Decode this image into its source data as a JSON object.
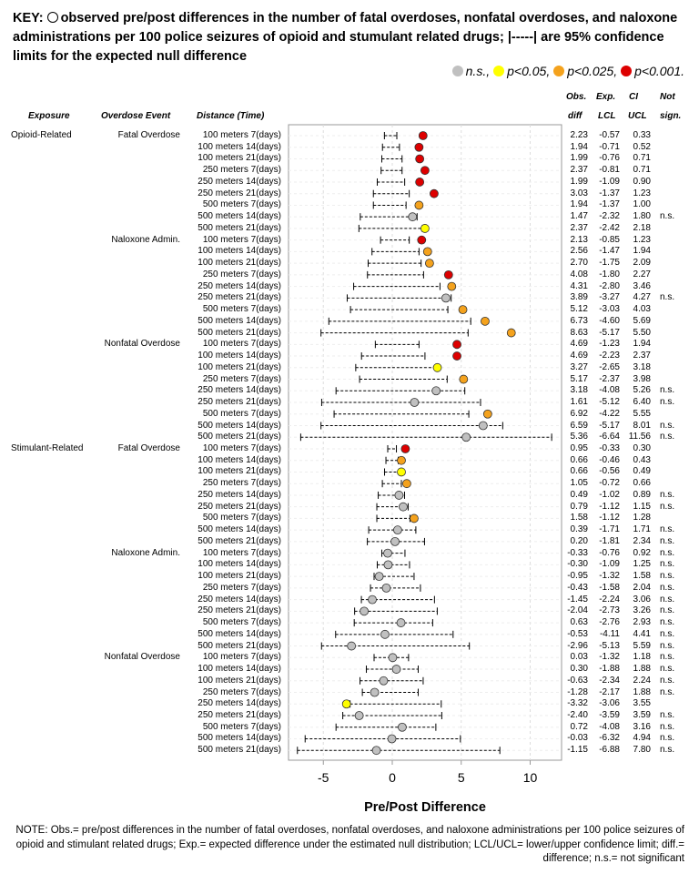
{
  "key_text": "KEY: observed pre/post differences in the number of fatal overdoses, nonfatal overdoses, and naloxone administrations per 100 police seizures of opioid and stumulant related drugs; |-----| are 95% confidence limits for the expected null difference",
  "key_prefix": "KEY:",
  "key_body": "observed pre/post differences in the number of fatal overdoses, nonfatal overdoses, and naloxone administrations per 100 police seizures of opioid and stumulant related drugs; |-----| are 95% confidence limits for the expected null difference",
  "legend": [
    {
      "label": "n.s.,",
      "color": "#c0c0c0"
    },
    {
      "label": "p<0.05,",
      "color": "#ffff00"
    },
    {
      "label": "p<0.025,",
      "color": "#f4a21d"
    },
    {
      "label": "p<0.001.",
      "color": "#dd0000"
    }
  ],
  "headers": {
    "exposure": "Exposure",
    "event": "Overdose Event",
    "distance": "Distance (Time)",
    "obs1": "Obs.",
    "obs2": "diff",
    "exp1": "Exp.",
    "exp2": "LCL",
    "ci1": "CI",
    "ci2": "UCL",
    "not1": "Not",
    "not2": "sign."
  },
  "chart_data": {
    "type": "forest",
    "xlabel": "Pre/Post Difference",
    "xlim": [
      -7.7,
      12.2
    ],
    "xticks": [
      -5,
      0,
      5,
      10
    ],
    "grid": true,
    "distances": [
      "100 meters 7(days)",
      "100 meters 14(days)",
      "100 meters 21(days)",
      "250 meters 7(days)",
      "250 meters 14(days)",
      "250 meters 21(days)",
      "500 meters 7(days)",
      "500 meters 14(days)",
      "500 meters 21(days)"
    ],
    "groups": [
      {
        "exposure": "Opioid-Related",
        "event": "Fatal Overdose",
        "obs": [
          2.23,
          1.94,
          1.99,
          2.37,
          1.99,
          3.03,
          1.94,
          1.47,
          2.37
        ],
        "lcl": [
          -0.57,
          -0.71,
          -0.76,
          -0.81,
          -1.09,
          -1.37,
          -1.37,
          -2.32,
          -2.42
        ],
        "ucl": [
          0.33,
          0.52,
          0.71,
          0.71,
          0.9,
          1.23,
          1.0,
          1.8,
          2.18
        ],
        "sig": [
          "p<0.001",
          "p<0.001",
          "p<0.001",
          "p<0.001",
          "p<0.001",
          "p<0.001",
          "p<0.025",
          "n.s.",
          "p<0.05"
        ]
      },
      {
        "exposure": "",
        "event": "Naloxone Admin.",
        "obs": [
          2.13,
          2.56,
          2.7,
          4.08,
          4.31,
          3.89,
          5.12,
          6.73,
          8.63
        ],
        "lcl": [
          -0.85,
          -1.47,
          -1.75,
          -1.8,
          -2.8,
          -3.27,
          -3.03,
          -4.6,
          -5.17
        ],
        "ucl": [
          1.23,
          1.94,
          2.09,
          2.27,
          3.46,
          4.27,
          4.03,
          5.69,
          5.5
        ],
        "sig": [
          "p<0.001",
          "p<0.025",
          "p<0.025",
          "p<0.001",
          "p<0.025",
          "n.s.",
          "p<0.025",
          "p<0.025",
          "p<0.025"
        ]
      },
      {
        "exposure": "",
        "event": "Nonfatal Overdose",
        "obs": [
          4.69,
          4.69,
          3.27,
          5.17,
          3.18,
          1.61,
          6.92,
          6.59,
          5.36
        ],
        "lcl": [
          -1.23,
          -2.23,
          -2.65,
          -2.37,
          -4.08,
          -5.12,
          -4.22,
          -5.17,
          -6.64
        ],
        "ucl": [
          1.94,
          2.37,
          3.18,
          3.98,
          5.26,
          6.4,
          5.55,
          8.01,
          11.56
        ],
        "sig": [
          "p<0.001",
          "p<0.001",
          "p<0.05",
          "p<0.025",
          "n.s.",
          "n.s.",
          "p<0.025",
          "n.s.",
          "n.s."
        ]
      },
      {
        "exposure": "Stimulant-Related",
        "event": "Fatal Overdose",
        "obs": [
          0.95,
          0.66,
          0.66,
          1.05,
          0.49,
          0.79,
          1.58,
          0.39,
          0.2
        ],
        "lcl": [
          -0.33,
          -0.46,
          -0.56,
          -0.72,
          -1.02,
          -1.12,
          -1.12,
          -1.71,
          -1.81
        ],
        "ucl": [
          0.3,
          0.43,
          0.49,
          0.66,
          0.89,
          1.15,
          1.28,
          1.71,
          2.34
        ],
        "sig": [
          "p<0.001",
          "p<0.025",
          "p<0.05",
          "p<0.025",
          "n.s.",
          "n.s.",
          "p<0.025",
          "n.s.",
          "n.s."
        ]
      },
      {
        "exposure": "",
        "event": "Naloxone Admin.",
        "obs": [
          -0.33,
          -0.3,
          -0.95,
          -0.43,
          -1.45,
          -2.04,
          0.63,
          -0.53,
          -2.96
        ],
        "lcl": [
          -0.76,
          -1.09,
          -1.32,
          -1.58,
          -2.24,
          -2.73,
          -2.76,
          -4.11,
          -5.13
        ],
        "ucl": [
          0.92,
          1.25,
          1.58,
          2.04,
          3.06,
          3.26,
          2.93,
          4.41,
          5.59
        ],
        "sig": [
          "n.s.",
          "n.s.",
          "n.s.",
          "n.s.",
          "n.s.",
          "n.s.",
          "n.s.",
          "n.s.",
          "n.s."
        ]
      },
      {
        "exposure": "",
        "event": "Nonfatal Overdose",
        "obs": [
          0.03,
          0.3,
          -0.63,
          -1.28,
          -3.32,
          -2.4,
          0.72,
          -0.03,
          -1.15
        ],
        "lcl": [
          -1.32,
          -1.88,
          -2.34,
          -2.17,
          -3.06,
          -3.59,
          -4.08,
          -6.32,
          -6.88
        ],
        "ucl": [
          1.18,
          1.88,
          2.24,
          1.88,
          3.55,
          3.59,
          3.16,
          4.94,
          7.8
        ],
        "sig": [
          "n.s.",
          "n.s.",
          "n.s.",
          "n.s.",
          "p<0.05",
          "n.s.",
          "n.s.",
          "n.s.",
          "n.s."
        ]
      }
    ]
  },
  "ns_label": "n.s.",
  "note": "NOTE: Obs.= pre/post differences in the number of fatal overdoses, nonfatal overdoses, and naloxone administrations per 100 police seizures of opioid and stimulant related drugs; Exp.= expected difference under the estimated null distribution; LCL/UCL= lower/upper confidence limit; diff.= difference; n.s.= not significant"
}
